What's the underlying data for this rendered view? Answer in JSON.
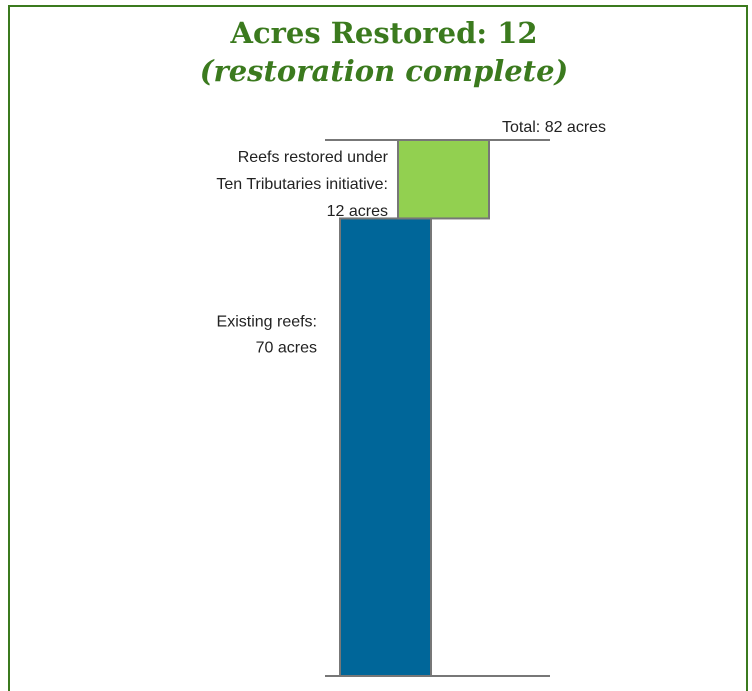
{
  "chart_data": {
    "type": "waterfall",
    "title": "Acres Restored: 12",
    "subtitle": "(restoration complete)",
    "ylim": [
      0,
      82
    ],
    "series": [
      {
        "name_lines": [
          "Existing reefs:"
        ],
        "color": "#006699",
        "values": [
          70
        ],
        "value_labels": [
          "70 acres"
        ]
      },
      {
        "name_lines": [
          "Reefs restored under",
          "Ten Tributaries initiative:"
        ],
        "color": "#92d050",
        "values": [
          12
        ],
        "value_labels": [
          "12 acres"
        ]
      }
    ],
    "total": 82,
    "total_label": "Total: 82 acres"
  }
}
